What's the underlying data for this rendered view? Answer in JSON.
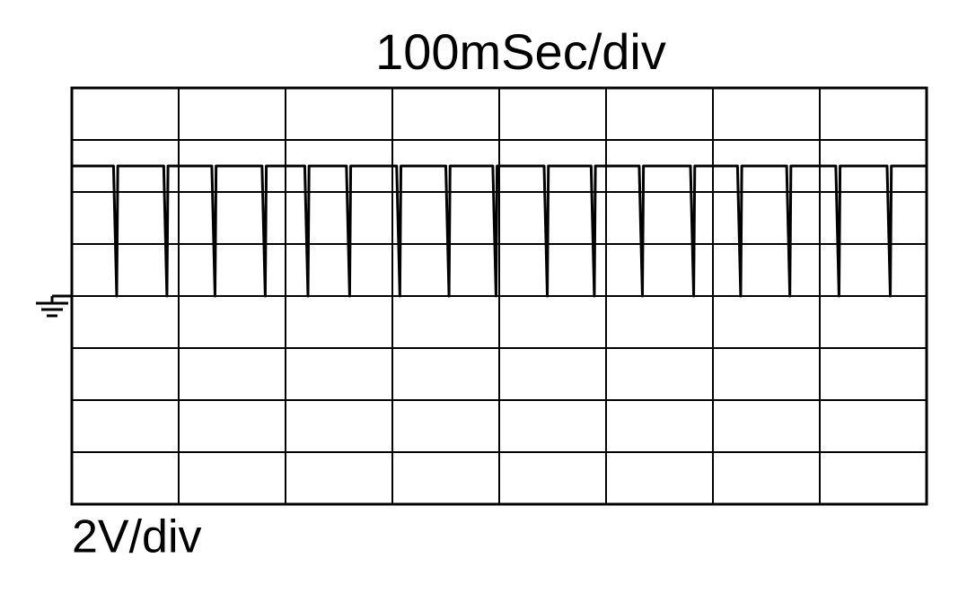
{
  "chart_data": {
    "type": "line",
    "title": "100mSec/div",
    "y_label": "2V/div",
    "x": [
      0,
      39,
      42,
      43,
      86,
      89,
      90,
      131,
      134,
      135,
      178,
      181,
      182,
      218,
      221,
      222,
      257,
      260,
      261,
      304,
      307,
      308,
      350,
      353,
      354,
      394,
      397,
      398,
      442,
      445,
      446,
      486,
      489,
      490,
      531,
      534,
      535,
      579,
      582,
      583,
      623,
      626,
      627,
      669,
      672,
      673,
      715,
      718,
      719,
      763,
      766,
      767,
      800
    ],
    "values": [
      5,
      5,
      0,
      5,
      5,
      0,
      5,
      5,
      0,
      5,
      5,
      0,
      5,
      5,
      0,
      5,
      5,
      0,
      5,
      5,
      0,
      5,
      5,
      0,
      5,
      5,
      0,
      5,
      5,
      0,
      5,
      5,
      0,
      5,
      5,
      0,
      5,
      5,
      0,
      5,
      5,
      0,
      5,
      5,
      0,
      5,
      5,
      0,
      5,
      5,
      0,
      5,
      5
    ],
    "color": "#000000",
    "xlim": [
      0,
      800
    ],
    "xticks": [
      0,
      100,
      200,
      300,
      400,
      500,
      600,
      700,
      800
    ],
    "ylim": [
      -8,
      8
    ],
    "yticks": [
      -8,
      -6,
      -4,
      -2,
      0,
      2,
      4,
      6,
      8
    ],
    "grid": true
  }
}
